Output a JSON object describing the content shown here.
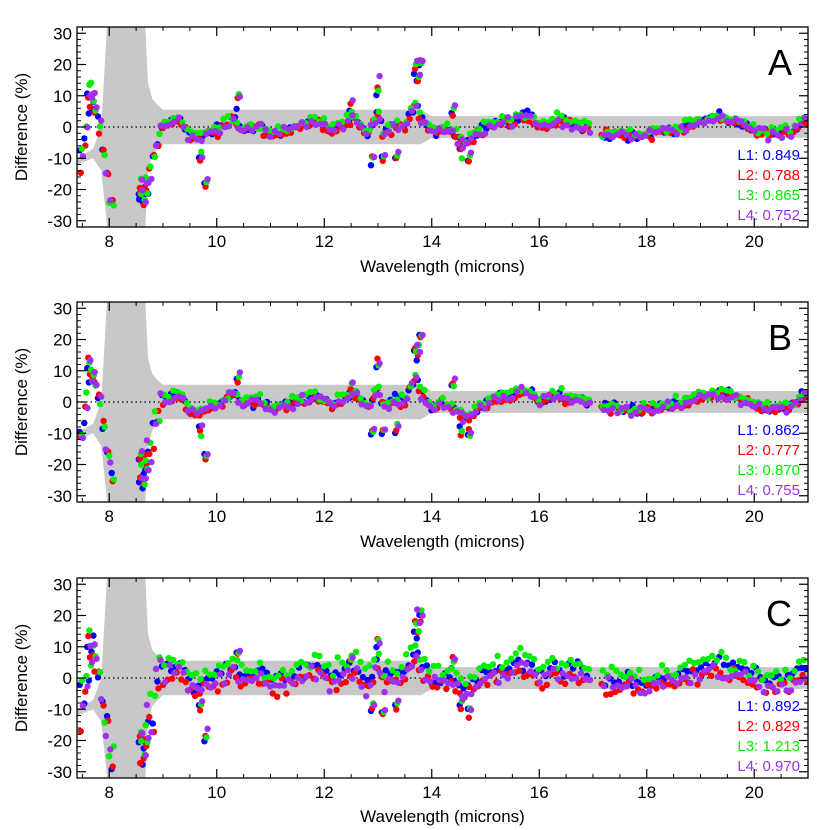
{
  "chart_data": [
    {
      "type": "scatter",
      "panel_label": "A",
      "xlabel": "Wavelength (microns)",
      "ylabel": "Difference (%)",
      "xlim": [
        7.4,
        21.0
      ],
      "ylim": [
        -32,
        32
      ],
      "x_ticks": [
        8,
        10,
        12,
        14,
        16,
        18,
        20
      ],
      "y_ticks": [
        -30,
        -20,
        -10,
        0,
        10,
        20,
        30
      ],
      "zero_line": "dotted",
      "legend_position": "bottom-right",
      "series": [
        {
          "name": "L1",
          "color": "#0000ff",
          "value": "0.849"
        },
        {
          "name": "L2",
          "color": "#ff0000",
          "value": "0.788"
        },
        {
          "name": "L3",
          "color": "#00ee00",
          "value": "0.865"
        },
        {
          "name": "L4",
          "color": "#a030f0",
          "value": "0.752"
        }
      ]
    },
    {
      "type": "scatter",
      "panel_label": "B",
      "xlabel": "Wavelength (microns)",
      "ylabel": "Difference (%)",
      "xlim": [
        7.4,
        21.0
      ],
      "ylim": [
        -32,
        32
      ],
      "x_ticks": [
        8,
        10,
        12,
        14,
        16,
        18,
        20
      ],
      "y_ticks": [
        -30,
        -20,
        -10,
        0,
        10,
        20,
        30
      ],
      "zero_line": "dotted",
      "legend_position": "bottom-right",
      "series": [
        {
          "name": "L1",
          "color": "#0000ff",
          "value": "0.862"
        },
        {
          "name": "L2",
          "color": "#ff0000",
          "value": "0.777"
        },
        {
          "name": "L3",
          "color": "#00ee00",
          "value": "0.870"
        },
        {
          "name": "L4",
          "color": "#a030f0",
          "value": "0.755"
        }
      ]
    },
    {
      "type": "scatter",
      "panel_label": "C",
      "xlabel": "Wavelength (microns)",
      "ylabel": "Difference (%)",
      "xlim": [
        7.4,
        21.0
      ],
      "ylim": [
        -32,
        32
      ],
      "x_ticks": [
        8,
        10,
        12,
        14,
        16,
        18,
        20
      ],
      "y_ticks": [
        -30,
        -20,
        -10,
        0,
        10,
        20,
        30
      ],
      "zero_line": "dotted",
      "legend_position": "bottom-right",
      "series": [
        {
          "name": "L1",
          "color": "#0000ff",
          "value": "0.892"
        },
        {
          "name": "L2",
          "color": "#ff0000",
          "value": "0.829"
        },
        {
          "name": "L3",
          "color": "#00ee00",
          "value": "1.213"
        },
        {
          "name": "L4",
          "color": "#a030f0",
          "value": "0.970"
        }
      ]
    }
  ],
  "uncertainty_band": {
    "color": "#c8c8c8",
    "upper": [
      [
        7.4,
        -10
      ],
      [
        7.7,
        -7
      ],
      [
        7.85,
        0
      ],
      [
        7.95,
        30
      ],
      [
        8.0,
        40
      ],
      [
        8.65,
        40
      ],
      [
        8.72,
        14
      ],
      [
        8.8,
        9
      ],
      [
        8.9,
        7
      ],
      [
        9.0,
        5.5
      ],
      [
        13.8,
        5.5
      ],
      [
        14.0,
        3.5
      ],
      [
        21.0,
        3.5
      ]
    ],
    "lower": [
      [
        21.0,
        -3.5
      ],
      [
        14.0,
        -3.5
      ],
      [
        13.8,
        -5.5
      ],
      [
        9.0,
        -5.5
      ],
      [
        8.9,
        -7
      ],
      [
        8.8,
        -9
      ],
      [
        8.72,
        -14
      ],
      [
        8.65,
        -40
      ],
      [
        8.0,
        -40
      ],
      [
        7.95,
        -30
      ],
      [
        7.85,
        -14
      ],
      [
        7.7,
        -10
      ],
      [
        7.4,
        -12
      ]
    ]
  },
  "trend": [
    [
      7.4,
      -15
    ],
    [
      7.55,
      -5
    ],
    [
      7.65,
      10
    ],
    [
      7.75,
      5
    ],
    [
      7.85,
      -2
    ],
    [
      7.95,
      -15
    ],
    [
      8.05,
      -25
    ],
    [
      8.6,
      -22
    ],
    [
      8.75,
      -15
    ],
    [
      8.9,
      -5
    ],
    [
      9.0,
      0
    ],
    [
      9.1,
      2
    ],
    [
      9.3,
      2
    ],
    [
      9.5,
      -3
    ],
    [
      9.7,
      -3
    ],
    [
      10.0,
      -1
    ],
    [
      10.3,
      3
    ],
    [
      10.5,
      -1
    ],
    [
      10.8,
      0
    ],
    [
      11.0,
      -2
    ],
    [
      11.3,
      -1
    ],
    [
      11.6,
      1
    ],
    [
      11.9,
      2
    ],
    [
      12.1,
      -1
    ],
    [
      12.4,
      1
    ],
    [
      12.6,
      3
    ],
    [
      12.8,
      -3
    ],
    [
      13.0,
      5
    ],
    [
      13.1,
      -2
    ],
    [
      13.3,
      1
    ],
    [
      13.5,
      0
    ],
    [
      13.7,
      8
    ],
    [
      13.8,
      3
    ],
    [
      14.0,
      -2
    ],
    [
      14.2,
      0
    ],
    [
      14.4,
      -2
    ],
    [
      14.6,
      -5
    ],
    [
      14.8,
      -3
    ],
    [
      15.0,
      0
    ],
    [
      15.2,
      1
    ],
    [
      15.5,
      2
    ],
    [
      15.8,
      4
    ],
    [
      16.0,
      0
    ],
    [
      16.3,
      2
    ],
    [
      16.6,
      1
    ],
    [
      16.9,
      0
    ],
    [
      17.2,
      -2
    ],
    [
      17.5,
      -2
    ],
    [
      17.8,
      -3
    ],
    [
      18.0,
      -2
    ],
    [
      18.5,
      -1
    ],
    [
      19.0,
      2
    ],
    [
      19.3,
      3
    ],
    [
      19.6,
      2
    ],
    [
      19.9,
      0
    ],
    [
      20.2,
      -2
    ],
    [
      20.5,
      -2
    ],
    [
      20.7,
      -1
    ],
    [
      21.0,
      3
    ]
  ],
  "gaps": [
    [
      8.1,
      8.55
    ],
    [
      16.95,
      17.15
    ]
  ],
  "spikes": [
    [
      7.62,
      12
    ],
    [
      7.7,
      9
    ],
    [
      8.58,
      -18
    ],
    [
      8.65,
      -25
    ],
    [
      8.7,
      -20
    ],
    [
      9.7,
      -9
    ],
    [
      9.8,
      -18
    ],
    [
      10.4,
      8
    ],
    [
      12.5,
      6
    ],
    [
      12.9,
      -9
    ],
    [
      13.0,
      12
    ],
    [
      13.1,
      -10
    ],
    [
      13.35,
      -9
    ],
    [
      13.7,
      18
    ],
    [
      13.75,
      16
    ],
    [
      13.8,
      20
    ],
    [
      14.4,
      6
    ],
    [
      14.55,
      -8
    ],
    [
      14.7,
      -10
    ]
  ]
}
